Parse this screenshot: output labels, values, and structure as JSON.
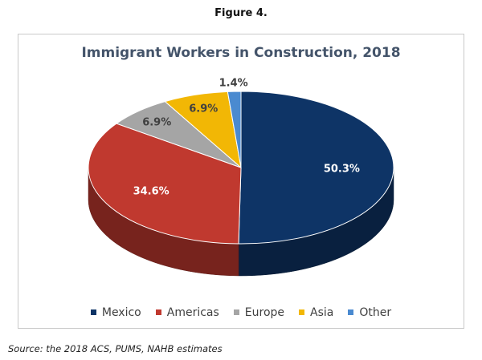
{
  "figure_label": "Figure 4.",
  "source": "Source: the 2018 ACS, PUMS, NAHB estimates",
  "chart_data": {
    "type": "pie",
    "title": "Immigrant Workers in Construction, 2018",
    "categories": [
      "Mexico",
      "Americas",
      "Europe",
      "Asia",
      "Other"
    ],
    "values": [
      50.3,
      34.6,
      6.9,
      6.9,
      1.4
    ],
    "labels": [
      "50.3%",
      "34.6%",
      "6.9%",
      "6.9%",
      "1.4%"
    ],
    "colors": [
      "#0e3466",
      "#c0392f",
      "#a5a5a5",
      "#f2b705",
      "#4a8ad0"
    ],
    "legend": "bottom"
  }
}
